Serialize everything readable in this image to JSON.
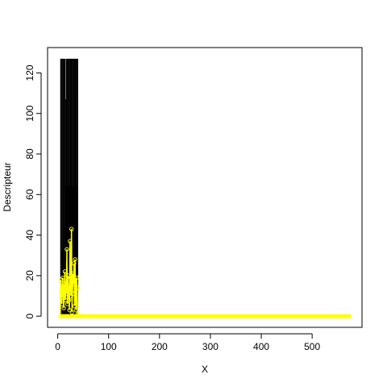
{
  "chart_data": {
    "type": "line",
    "title": "",
    "xlabel": "X",
    "ylabel": "Descripteur",
    "xlim": [
      -20,
      598
    ],
    "ylim": [
      -5.5,
      132.5
    ],
    "xticks": [
      0,
      100,
      200,
      300,
      400,
      500
    ],
    "yticks": [
      0,
      20,
      40,
      60,
      80,
      100,
      120
    ],
    "grid": false,
    "legend": "none",
    "series": [
      {
        "color": "#000000",
        "style": "vertical-lines",
        "x": [
          6,
          7,
          8,
          9,
          10,
          11,
          12,
          13,
          14,
          15,
          16,
          17,
          18,
          19,
          20,
          21,
          22,
          23,
          24,
          25,
          26,
          27,
          28,
          29,
          30,
          31,
          32,
          33,
          34,
          35,
          36,
          37,
          38,
          39
        ],
        "values": [
          127,
          64,
          127,
          32,
          127,
          64,
          127,
          16,
          127,
          107,
          64,
          127,
          96,
          127,
          64,
          127,
          80,
          127,
          64,
          127,
          32,
          127,
          64,
          127,
          48,
          127,
          64,
          127,
          110,
          127,
          64,
          127,
          64,
          127
        ]
      },
      {
        "color": "#ffff00",
        "style": "line-points",
        "x": [
          5,
          6,
          7,
          8,
          9,
          10,
          11,
          12,
          13,
          14,
          15,
          16,
          17,
          18,
          19,
          20,
          21,
          22,
          23,
          24,
          25,
          26,
          27,
          28,
          29,
          30,
          31,
          32,
          33,
          34,
          35,
          36,
          37,
          38,
          39,
          45,
          80,
          120,
          160,
          200,
          240,
          280,
          320,
          360,
          400,
          440,
          480,
          520,
          560,
          576
        ],
        "values": [
          0,
          18,
          12,
          6,
          15,
          19,
          9,
          4,
          14,
          22,
          8,
          17,
          11,
          33,
          6,
          20,
          14,
          8,
          3,
          37,
          19,
          10,
          43,
          2,
          11,
          21,
          16,
          26,
          5,
          28,
          12,
          3,
          19,
          14,
          1,
          0,
          0,
          0,
          0,
          0,
          0,
          0,
          0,
          0,
          0,
          0,
          0,
          0,
          0,
          0
        ]
      }
    ]
  }
}
